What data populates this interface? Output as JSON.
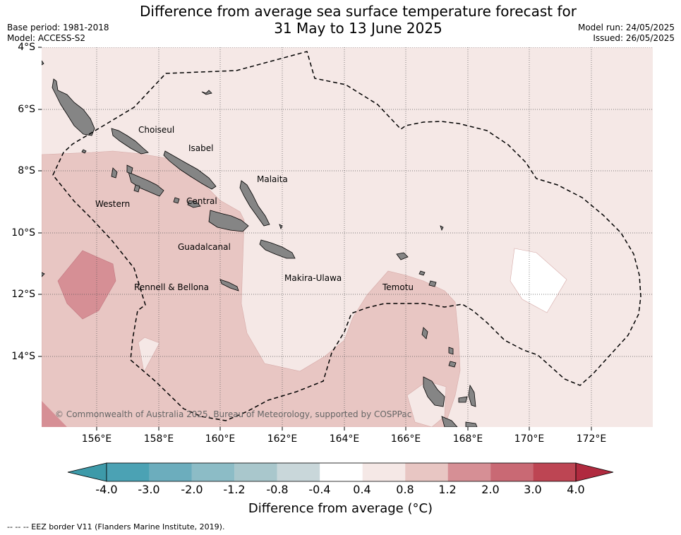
{
  "header": {
    "title_line1": "Difference from average sea surface temperature forecast for",
    "title_line2": "31 May to 13 June 2025",
    "base_period": "Base period: 1981-2018",
    "model": "Model: ACCESS-S2",
    "model_run": "Model run: 24/05/2025",
    "issued": "Issued: 26/05/2025"
  },
  "map": {
    "lat_labels": [
      "4°S",
      "6°S",
      "8°S",
      "10°S",
      "12°S",
      "14°S"
    ],
    "lon_labels": [
      "156°E",
      "158°E",
      "160°E",
      "162°E",
      "164°E",
      "166°E",
      "168°E",
      "170°E",
      "172°E"
    ],
    "regions": [
      "Choiseul",
      "Isabel",
      "Malaita",
      "Western",
      "Central",
      "Guadalcanal",
      "Makira-Ulawa",
      "Rennell & Bellona",
      "Temotu"
    ],
    "copyright": "© Commonwealth of Australia 2025, Bureau of Meteorology, supported by COSPPac",
    "colors": {
      "land": "#858585",
      "eez_border": "#000000",
      "anomaly_0_4_to_0_8": "#f5e8e6",
      "anomaly_0_8_to_1_2": "#e8c6c3",
      "anomaly_1_2_to_2_0": "#d68f95",
      "anomaly_neg0_4_to_0_4": "#ffffff"
    }
  },
  "colorbar": {
    "title": "Difference from average (°C)",
    "tick_labels": [
      "-4.0",
      "-3.0",
      "-2.0",
      "-1.2",
      "-0.8",
      "-0.4",
      "0.4",
      "0.8",
      "1.2",
      "2.0",
      "3.0",
      "4.0"
    ],
    "colors": [
      "#3d9aa9",
      "#4ba2b4",
      "#6cadbd",
      "#8cbcc6",
      "#a9c7cc",
      "#c9d7da",
      "#ffffff",
      "#f5e8e6",
      "#e8c6c3",
      "#d68f95",
      "#c96974",
      "#bd4553",
      "#b02a3f"
    ]
  },
  "footnote": "--  --  -- EEZ border V11 (Flanders Marine Institute, 2019)."
}
